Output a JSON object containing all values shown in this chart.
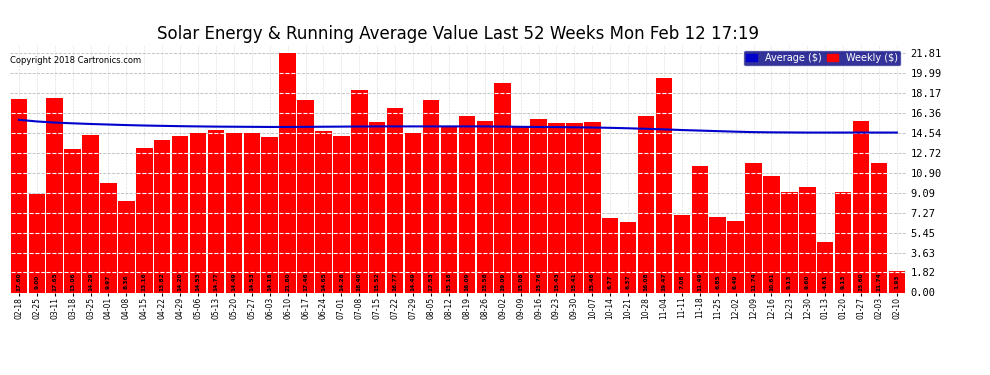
{
  "title": "Solar Energy & Running Average Value Last 52 Weeks Mon Feb 12 17:19",
  "copyright": "Copyright 2018 Cartronics.com",
  "categories": [
    "02-18",
    "02-25",
    "03-11",
    "03-18",
    "03-25",
    "04-01",
    "04-08",
    "04-15",
    "04-22",
    "04-29",
    "05-06",
    "05-13",
    "05-20",
    "05-27",
    "06-03",
    "06-10",
    "06-17",
    "06-24",
    "07-01",
    "07-08",
    "07-15",
    "07-22",
    "07-29",
    "08-05",
    "08-12",
    "08-19",
    "08-26",
    "09-02",
    "09-09",
    "09-16",
    "09-23",
    "09-30",
    "10-07",
    "10-14",
    "10-21",
    "10-28",
    "11-04",
    "11-11",
    "11-18",
    "11-25",
    "12-02",
    "12-09",
    "12-16",
    "12-23",
    "12-30",
    "01-13",
    "01-20",
    "01-27",
    "02-03",
    "02-10"
  ],
  "bar_values": [
    17.6,
    9.0,
    17.65,
    13.06,
    14.29,
    9.97,
    8.36,
    13.16,
    13.82,
    14.2,
    14.53,
    14.77,
    14.49,
    14.53,
    14.18,
    21.8,
    17.46,
    14.65,
    14.26,
    18.4,
    15.52,
    16.77,
    14.49,
    17.53,
    15.18,
    16.09,
    15.58,
    19.09,
    15.08,
    15.76,
    15.43,
    15.41,
    15.46,
    6.77,
    6.37,
    16.08,
    19.47,
    7.08,
    11.49,
    6.85,
    6.49,
    11.74,
    10.61,
    9.13,
    9.6,
    4.61,
    9.13,
    15.6,
    11.736,
    1.93
  ],
  "avg_values": [
    15.7,
    15.55,
    15.45,
    15.38,
    15.32,
    15.27,
    15.22,
    15.18,
    15.15,
    15.12,
    15.1,
    15.08,
    15.07,
    15.06,
    15.05,
    15.05,
    15.06,
    15.07,
    15.08,
    15.09,
    15.1,
    15.1,
    15.1,
    15.1,
    15.1,
    15.1,
    15.1,
    15.08,
    15.06,
    15.05,
    15.04,
    15.02,
    15.0,
    14.97,
    14.93,
    14.88,
    14.83,
    14.77,
    14.72,
    14.67,
    14.62,
    14.58,
    14.56,
    14.55,
    14.54,
    14.54,
    14.54,
    14.54,
    14.54,
    14.54
  ],
  "bar_color": "#FF0000",
  "bar_edge_color": "#880000",
  "avg_line_color": "#0000CC",
  "background_color": "#FFFFFF",
  "plot_bg_color": "#FFFFFF",
  "title_fontsize": 12,
  "ylabel_values": [
    0.0,
    1.82,
    3.63,
    5.45,
    7.27,
    9.09,
    10.9,
    12.72,
    14.54,
    16.36,
    18.17,
    19.99,
    21.81
  ],
  "grid_color": "#BBBBBB",
  "ymax": 22.5
}
